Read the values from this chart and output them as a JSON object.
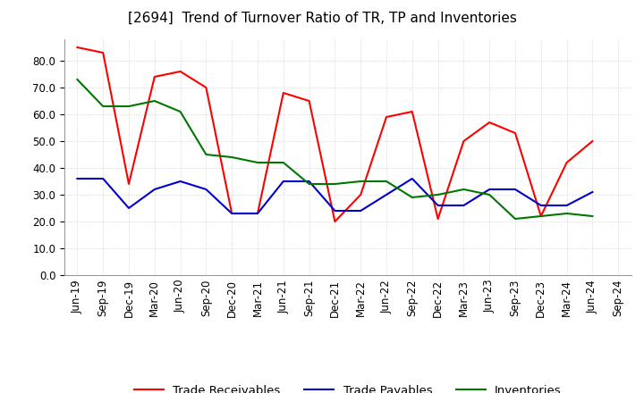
{
  "title": "[2694]  Trend of Turnover Ratio of TR, TP and Inventories",
  "x_labels": [
    "Jun-19",
    "Sep-19",
    "Dec-19",
    "Mar-20",
    "Jun-20",
    "Sep-20",
    "Dec-20",
    "Mar-21",
    "Jun-21",
    "Sep-21",
    "Dec-21",
    "Mar-22",
    "Jun-22",
    "Sep-22",
    "Dec-22",
    "Mar-23",
    "Jun-23",
    "Sep-23",
    "Dec-23",
    "Mar-24",
    "Jun-24",
    "Sep-24"
  ],
  "trade_receivables": [
    85,
    83,
    34,
    74,
    76,
    70,
    23,
    23,
    68,
    65,
    20,
    30,
    59,
    61,
    21,
    50,
    57,
    53,
    22,
    42,
    50,
    null
  ],
  "trade_payables": [
    36,
    36,
    25,
    32,
    35,
    32,
    23,
    23,
    35,
    35,
    24,
    24,
    30,
    36,
    26,
    26,
    32,
    32,
    26,
    26,
    31,
    null
  ],
  "inventories": [
    73,
    63,
    63,
    65,
    61,
    45,
    44,
    42,
    42,
    34,
    34,
    35,
    35,
    29,
    30,
    32,
    30,
    21,
    22,
    23,
    22,
    null
  ],
  "ylim": [
    0,
    88
  ],
  "yticks": [
    0.0,
    10.0,
    20.0,
    30.0,
    40.0,
    50.0,
    60.0,
    70.0,
    80.0
  ],
  "line_color_tr": "#ff0000",
  "line_color_tp": "#0000cc",
  "line_color_inv": "#007700",
  "legend_labels": [
    "Trade Receivables",
    "Trade Payables",
    "Inventories"
  ],
  "grid_color": "#aaaaaa",
  "background_color": "#ffffff",
  "title_fontsize": 11,
  "axis_fontsize": 8.5,
  "legend_fontsize": 9.5
}
